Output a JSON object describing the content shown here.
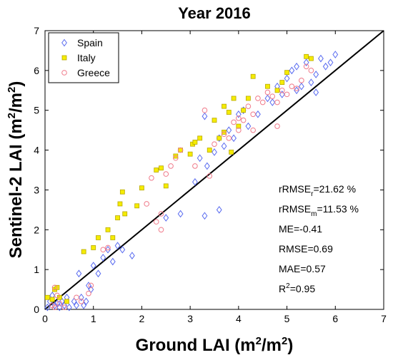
{
  "chart_data": {
    "type": "scatter",
    "title": "Year 2016",
    "xlabel": {
      "main": "Ground LAI (m",
      "sup": "2",
      "mid": "/m",
      "sup2": "2",
      "end": ")"
    },
    "ylabel": {
      "main": "Sentinel-2 LAI (m",
      "sup": "2",
      "mid": "/m",
      "sup2": "2",
      "end": ")"
    },
    "xlim": [
      0,
      7
    ],
    "ylim": [
      0,
      7
    ],
    "xticks": [
      "0",
      "1",
      "2",
      "3",
      "4",
      "5",
      "6",
      "7"
    ],
    "yticks": [
      "0",
      "1",
      "2",
      "3",
      "4",
      "5",
      "6",
      "7"
    ],
    "grid": false,
    "legend_position": "top-left",
    "reference_line": {
      "from": [
        0,
        0
      ],
      "to": [
        7,
        7
      ],
      "color": "#000000"
    },
    "series": [
      {
        "name": "Spain",
        "marker": "diamond",
        "color": "#5a6cf0",
        "fill": "none",
        "points": [
          [
            0.05,
            0.05
          ],
          [
            0.1,
            0.2
          ],
          [
            0.15,
            0.35
          ],
          [
            0.2,
            0.1
          ],
          [
            0.25,
            0.15
          ],
          [
            0.3,
            0.05
          ],
          [
            0.35,
            0.2
          ],
          [
            0.4,
            0.1
          ],
          [
            0.45,
            0.3
          ],
          [
            0.5,
            0.05
          ],
          [
            0.6,
            0.2
          ],
          [
            0.65,
            0.1
          ],
          [
            0.7,
            0.9
          ],
          [
            0.75,
            0.3
          ],
          [
            0.8,
            0.1
          ],
          [
            0.85,
            0.2
          ],
          [
            0.9,
            0.6
          ],
          [
            0.95,
            0.5
          ],
          [
            1.0,
            1.1
          ],
          [
            1.1,
            0.9
          ],
          [
            1.2,
            1.3
          ],
          [
            1.3,
            1.5
          ],
          [
            1.4,
            1.2
          ],
          [
            1.5,
            1.6
          ],
          [
            1.6,
            1.5
          ],
          [
            1.8,
            1.35
          ],
          [
            2.5,
            2.3
          ],
          [
            2.8,
            2.4
          ],
          [
            3.1,
            3.2
          ],
          [
            3.3,
            2.35
          ],
          [
            3.6,
            2.5
          ],
          [
            3.2,
            3.8
          ],
          [
            3.3,
            4.85
          ],
          [
            3.35,
            3.6
          ],
          [
            3.5,
            3.95
          ],
          [
            3.6,
            4.3
          ],
          [
            3.7,
            4.1
          ],
          [
            3.8,
            4.5
          ],
          [
            3.9,
            4.3
          ],
          [
            4.0,
            4.9
          ],
          [
            4.1,
            5.0
          ],
          [
            4.2,
            4.6
          ],
          [
            4.4,
            4.9
          ],
          [
            4.6,
            5.3
          ],
          [
            4.7,
            5.2
          ],
          [
            4.8,
            5.6
          ],
          [
            4.9,
            5.4
          ],
          [
            5.0,
            5.8
          ],
          [
            5.1,
            6.0
          ],
          [
            5.2,
            6.1
          ],
          [
            5.3,
            5.6
          ],
          [
            5.4,
            6.2
          ],
          [
            5.5,
            5.7
          ],
          [
            5.6,
            5.9
          ],
          [
            5.7,
            6.3
          ],
          [
            5.8,
            6.1
          ],
          [
            5.9,
            6.2
          ],
          [
            6.0,
            6.4
          ],
          [
            5.2,
            5.5
          ],
          [
            5.6,
            5.45
          ]
        ]
      },
      {
        "name": "Italy",
        "marker": "square",
        "color": "#b8a800",
        "fill": "#f5ec00",
        "points": [
          [
            0.05,
            0.3
          ],
          [
            0.15,
            0.25
          ],
          [
            0.2,
            0.5
          ],
          [
            0.25,
            0.55
          ],
          [
            0.3,
            0.3
          ],
          [
            0.45,
            0.2
          ],
          [
            0.8,
            1.45
          ],
          [
            1.0,
            1.55
          ],
          [
            1.1,
            1.8
          ],
          [
            1.3,
            2.0
          ],
          [
            1.4,
            1.8
          ],
          [
            1.5,
            2.3
          ],
          [
            1.55,
            2.65
          ],
          [
            1.6,
            2.95
          ],
          [
            1.65,
            2.4
          ],
          [
            1.9,
            2.6
          ],
          [
            2.0,
            3.05
          ],
          [
            2.3,
            3.5
          ],
          [
            2.4,
            3.55
          ],
          [
            2.5,
            3.1
          ],
          [
            2.7,
            3.85
          ],
          [
            2.8,
            4.0
          ],
          [
            3.0,
            3.9
          ],
          [
            3.05,
            4.15
          ],
          [
            3.1,
            4.2
          ],
          [
            3.2,
            4.3
          ],
          [
            3.4,
            4.0
          ],
          [
            3.5,
            4.75
          ],
          [
            3.7,
            5.1
          ],
          [
            3.8,
            4.95
          ],
          [
            3.9,
            5.3
          ],
          [
            4.0,
            4.6
          ],
          [
            4.1,
            5.0
          ],
          [
            4.2,
            5.3
          ],
          [
            4.3,
            5.85
          ],
          [
            4.6,
            5.6
          ],
          [
            4.8,
            5.5
          ],
          [
            4.9,
            5.7
          ],
          [
            5.0,
            5.95
          ],
          [
            5.4,
            6.35
          ],
          [
            5.5,
            6.3
          ],
          [
            3.6,
            4.3
          ],
          [
            3.7,
            4.45
          ],
          [
            3.85,
            3.95
          ]
        ]
      },
      {
        "name": "Greece",
        "marker": "circle",
        "color": "#f07a8a",
        "fill": "none",
        "points": [
          [
            0.15,
            0.1
          ],
          [
            0.2,
            0.05
          ],
          [
            0.2,
            0.55
          ],
          [
            0.25,
            0.35
          ],
          [
            0.3,
            0.15
          ],
          [
            0.4,
            0.05
          ],
          [
            0.65,
            0.3
          ],
          [
            0.75,
            0.2
          ],
          [
            0.9,
            0.4
          ],
          [
            0.95,
            0.6
          ],
          [
            1.2,
            1.5
          ],
          [
            1.3,
            1.55
          ],
          [
            2.1,
            2.65
          ],
          [
            2.2,
            3.3
          ],
          [
            2.3,
            2.2
          ],
          [
            2.4,
            2.4
          ],
          [
            2.5,
            3.4
          ],
          [
            2.6,
            3.6
          ],
          [
            2.7,
            3.8
          ],
          [
            2.8,
            4.0
          ],
          [
            3.1,
            3.6
          ],
          [
            3.4,
            3.35
          ],
          [
            3.5,
            4.15
          ],
          [
            3.7,
            4.4
          ],
          [
            3.8,
            4.3
          ],
          [
            3.9,
            4.7
          ],
          [
            4.0,
            4.5
          ],
          [
            4.1,
            4.75
          ],
          [
            4.2,
            5.1
          ],
          [
            4.3,
            4.9
          ],
          [
            4.4,
            5.3
          ],
          [
            4.5,
            5.2
          ],
          [
            4.6,
            5.45
          ],
          [
            4.7,
            5.35
          ],
          [
            4.8,
            5.2
          ],
          [
            4.9,
            5.5
          ],
          [
            5.0,
            5.4
          ],
          [
            5.1,
            5.6
          ],
          [
            5.2,
            5.55
          ],
          [
            5.3,
            5.75
          ],
          [
            5.4,
            6.1
          ],
          [
            5.5,
            6.0
          ],
          [
            4.8,
            4.6
          ],
          [
            4.3,
            4.5
          ],
          [
            2.4,
            2.0
          ],
          [
            3.3,
            5.0
          ],
          [
            4.0,
            4.8
          ]
        ]
      }
    ]
  },
  "stats": [
    {
      "prefix": "rRMSE",
      "sub": "r",
      "suffix": "=21.62 %"
    },
    {
      "prefix": "rRMSE",
      "sub": "m",
      "suffix": "=11.53 %"
    },
    {
      "prefix": "ME=-0.41",
      "sub": "",
      "suffix": ""
    },
    {
      "prefix": "RMSE=0.69",
      "sub": "",
      "suffix": ""
    },
    {
      "prefix": "MAE=0.57",
      "sub": "",
      "suffix": ""
    },
    {
      "prefix": "R",
      "sup": "2",
      "suffix": "=0.95"
    }
  ]
}
